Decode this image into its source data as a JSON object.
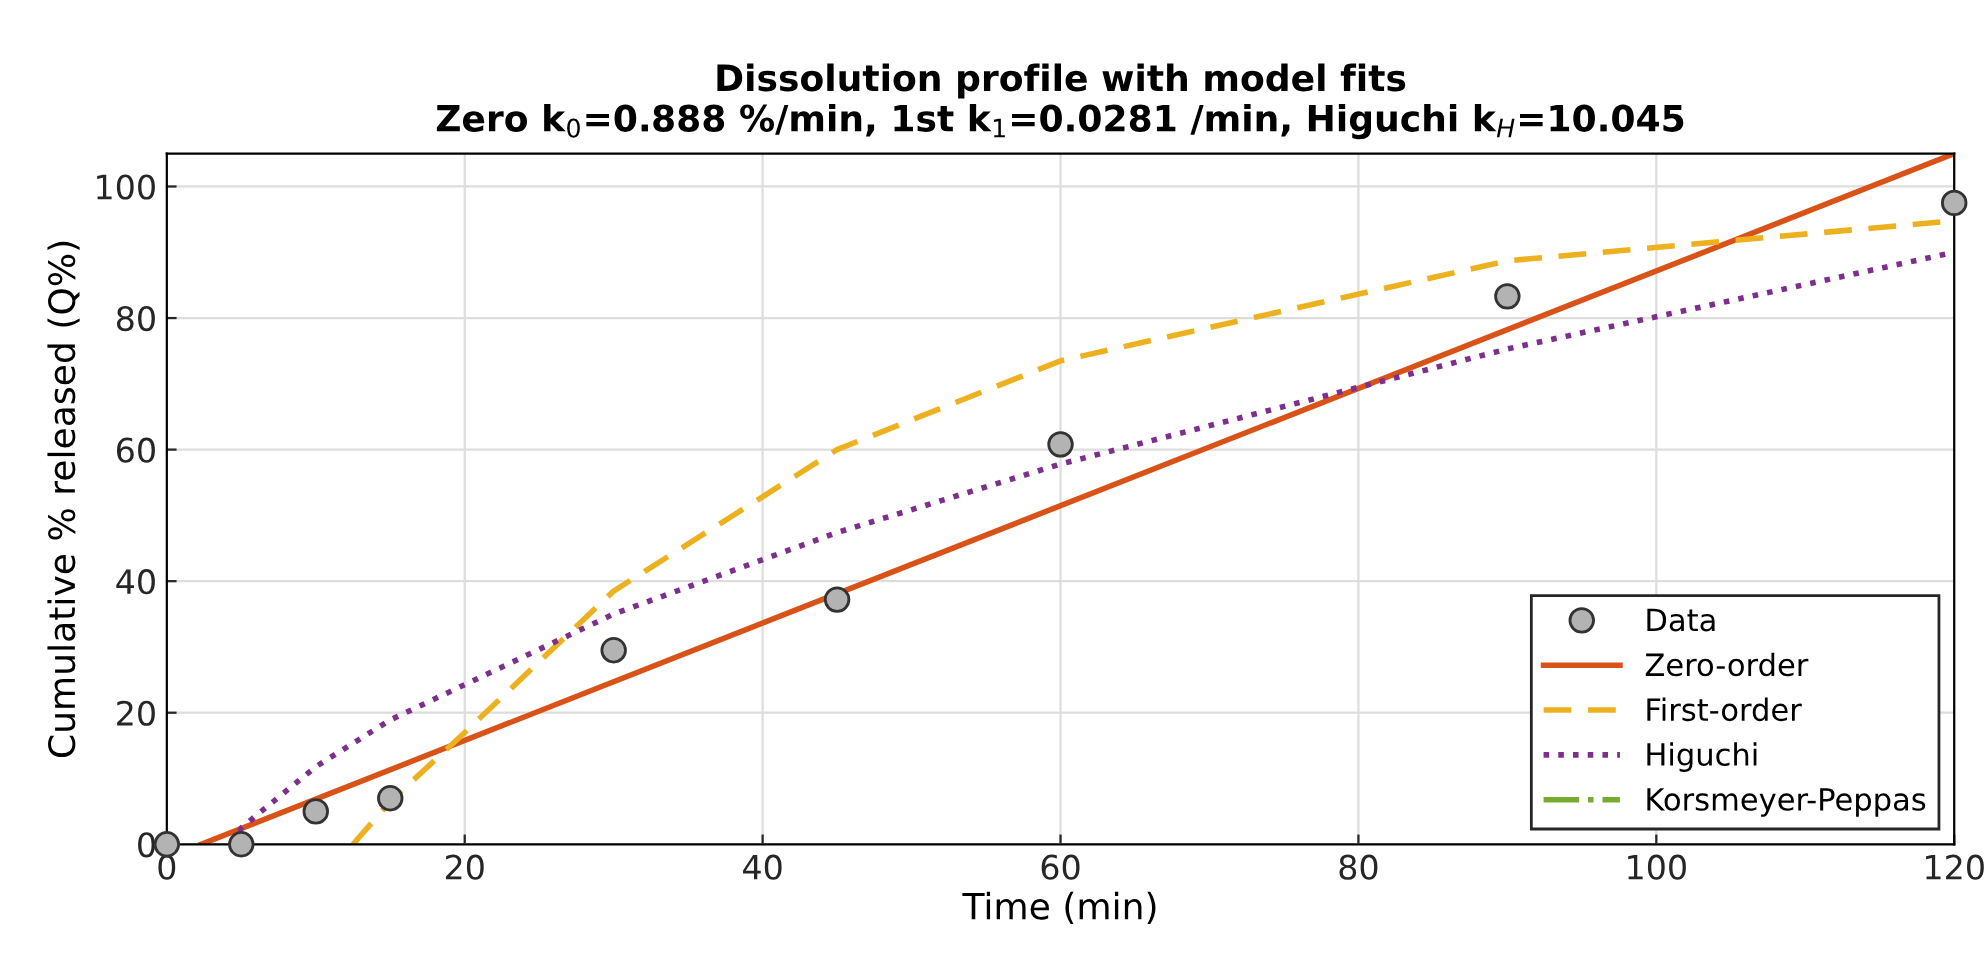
{
  "chart_data": {
    "type": "line",
    "title": "Dissolution profile with model fits\nZero k$_{0}$=0.888 %/min, 1st k$_{1}$=0.0281 /min, Higuchi k$_{H}$=10.045",
    "xlabel": "Time (min)",
    "ylabel": "Cumulative % released (Q%)",
    "xlim": [
      0,
      120
    ],
    "xticks": [
      0,
      20,
      40,
      60,
      80,
      100,
      120
    ],
    "ylim": [
      0,
      105
    ],
    "yticks": [
      0,
      20,
      40,
      60,
      80,
      100
    ],
    "grid": true,
    "legend": "bottom right",
    "series": [
      {
        "name": "Data",
        "type": "scatter",
        "marker": "circle",
        "color": "#b3b3b3",
        "x": [
          0,
          5,
          10,
          15,
          30,
          45,
          60,
          90,
          120
        ],
        "values": [
          0,
          0,
          5,
          7,
          29.5,
          37.2,
          60.8,
          83.3,
          97.5
        ]
      },
      {
        "name": "Zero-order",
        "line_style": "solid",
        "color": "#d95319",
        "x": [
          2.3,
          120
        ],
        "values": [
          0,
          105
        ]
      },
      {
        "name": "First-order",
        "line_style": "dashed",
        "color": "#edb120",
        "x": [
          12.5,
          15,
          20,
          30,
          45,
          60,
          90,
          120
        ],
        "values": [
          0,
          6.5,
          17,
          38.5,
          60,
          73.5,
          88.7,
          94.8
        ]
      },
      {
        "name": "Higuchi",
        "line_style": "dotted",
        "color": "#7e2f8e",
        "x": [
          4.4,
          5,
          10,
          15,
          30,
          45,
          60,
          90,
          120
        ],
        "values": [
          0,
          2.5,
          11.8,
          18.9,
          35,
          47.4,
          57.8,
          75.3,
          90
        ]
      },
      {
        "name": "Korsmeyer-Peppas",
        "line_style": "dashdot",
        "color": "#77ac30"
      }
    ]
  }
}
